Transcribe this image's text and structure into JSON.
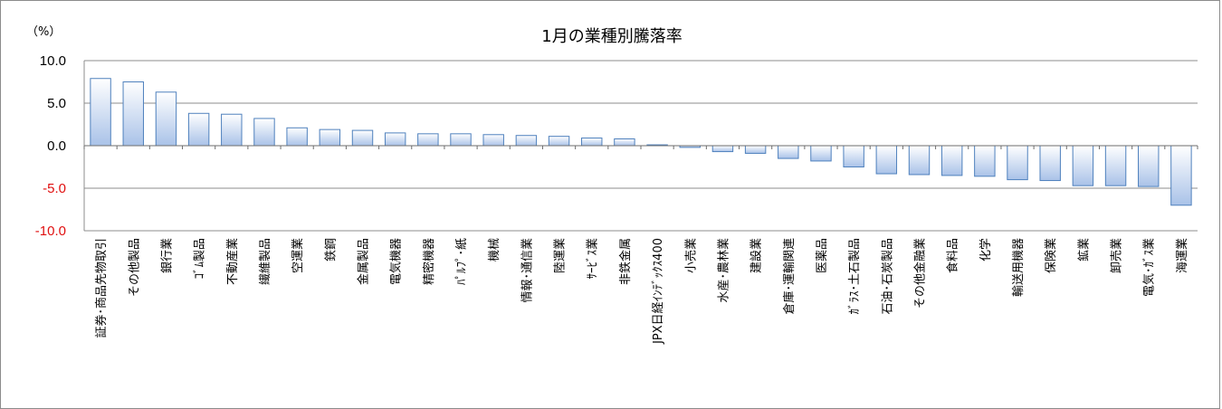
{
  "chart_data": {
    "type": "bar",
    "title": "1月の業種別騰落率",
    "ylabel": "",
    "unit_label": "（%）",
    "ylim": [
      -10,
      10
    ],
    "yticks": [
      "10.0",
      "5.0",
      "0.0",
      "-5.0",
      "-10.0"
    ],
    "ytick_values": [
      10,
      5,
      0,
      -5,
      -10
    ],
    "negative_tick_color": "#e01010",
    "positive_tick_color": "#000000",
    "bar_fill_top": "#ffffff",
    "bar_fill_bottom": "#a9c2e8",
    "bar_stroke": "#4f81bd",
    "grid": true,
    "categories": [
      "証券･商品先物取引",
      "その他製品",
      "銀行業",
      "ｺﾞﾑ製品",
      "不動産業",
      "繊維製品",
      "空運業",
      "鉄鋼",
      "金属製品",
      "電気機器",
      "精密機器",
      "ﾊﾟﾙﾌﾟ･紙",
      "機械",
      "情報･通信業",
      "陸運業",
      "ｻｰﾋﾞｽ業",
      "非鉄金属",
      "JPX日経ｲﾝﾃﾞｯｸｽ400",
      "小売業",
      "水産･農林業",
      "建設業",
      "倉庫･運輸関連",
      "医薬品",
      "ｶﾞﾗｽ･土石製品",
      "石油･石炭製品",
      "その他金融業",
      "食料品",
      "化学",
      "輸送用機器",
      "保険業",
      "鉱業",
      "卸売業",
      "電気･ｶﾞｽ業",
      "海運業"
    ],
    "values": [
      7.9,
      7.5,
      6.3,
      3.8,
      3.7,
      3.2,
      2.1,
      1.9,
      1.8,
      1.5,
      1.4,
      1.4,
      1.3,
      1.2,
      1.1,
      0.9,
      0.8,
      0.1,
      -0.2,
      -0.7,
      -0.9,
      -1.5,
      -1.8,
      -2.5,
      -3.3,
      -3.4,
      -3.5,
      -3.6,
      -4.0,
      -4.1,
      -4.7,
      -4.7,
      -4.8,
      -7.0
    ]
  }
}
